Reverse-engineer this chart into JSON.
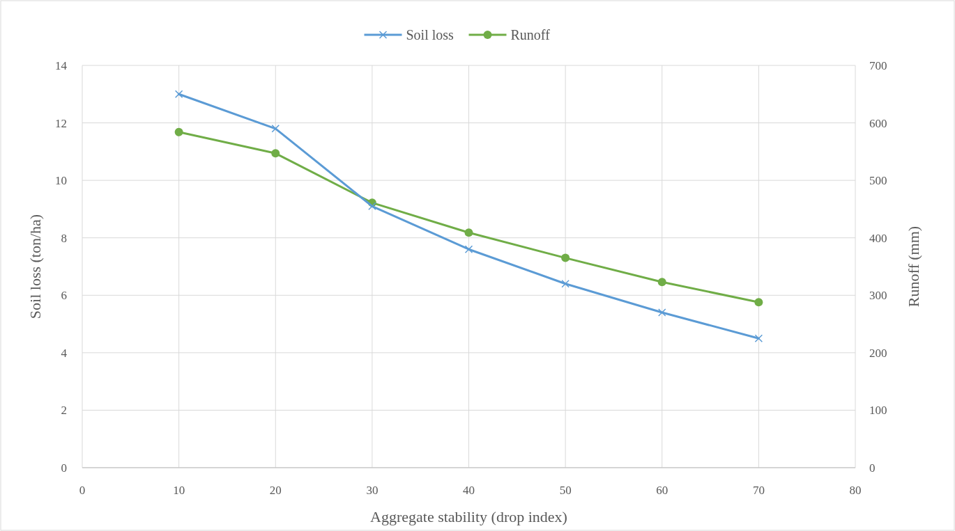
{
  "chart_data": {
    "type": "line",
    "xlabel": "Aggregate stability (drop index)",
    "ylabel": "Soil loss (ton/ha)",
    "y2label": "Runoff (mm)",
    "x": [
      10,
      20,
      30,
      40,
      50,
      60,
      70
    ],
    "xlim": [
      0,
      80
    ],
    "xticks": [
      0,
      10,
      20,
      30,
      40,
      50,
      60,
      70,
      80
    ],
    "ylim": [
      0,
      14
    ],
    "yticks": [
      0,
      2,
      4,
      6,
      8,
      10,
      12,
      14
    ],
    "y2lim": [
      0,
      700
    ],
    "y2ticks": [
      0,
      100,
      200,
      300,
      400,
      500,
      600,
      700
    ],
    "grid": true,
    "legend": "top",
    "series": [
      {
        "name": "Soil loss",
        "color": "#5b9bd5",
        "marker": "cross",
        "values": [
          13.0,
          11.8,
          9.1,
          7.6,
          6.4,
          5.4,
          4.5
        ]
      },
      {
        "name": "Runoff",
        "color": "#70ad47",
        "marker": "circle",
        "axis": "y2",
        "values": [
          584,
          547,
          461,
          409,
          365,
          323,
          288
        ]
      }
    ]
  }
}
